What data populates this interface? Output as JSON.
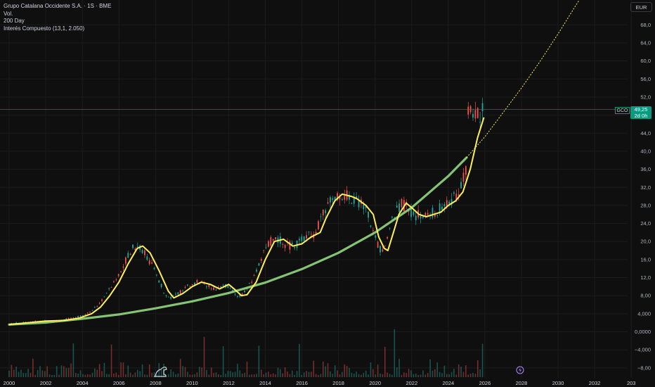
{
  "header": {
    "title": "Grupo Catalana Occidente S.A. · 1S · BME",
    "vol_label": "Vol.",
    "ma_label": "200 Day",
    "indicator_label": "Interés Compuesto (13,1, 2.050)"
  },
  "currency_button": "EUR",
  "price_tag": {
    "symbol": "GCO",
    "value": "49,25",
    "countdown": "2d 0h"
  },
  "colors": {
    "background": "#0f0f0f",
    "up": "#26a69a",
    "down": "#ef5350",
    "ma": "#fdee5b",
    "compound": "#8fd47e",
    "price_line": "#089981",
    "grid": "#1c1c1c"
  },
  "icons": {
    "logo": "tradingview-dino-logo",
    "lightning": "lightning-icon"
  },
  "chart_data": {
    "type": "line",
    "title": "Grupo Catalana Occidente S.A. · 1S · BME",
    "x_axis": {
      "range": [
        1999.5,
        2033.8
      ],
      "ticks": [
        "2000",
        "2002",
        "2004",
        "2006",
        "2008",
        "2010",
        "2012",
        "2014",
        "2016",
        "2018",
        "2020",
        "2022",
        "2024",
        "2026",
        "2028",
        "2030",
        "2032",
        "203"
      ]
    },
    "y_axis": {
      "range": [
        -10.2,
        73.5
      ],
      "ticks": [
        "68,0",
        "64,0",
        "60,0",
        "56,0",
        "52,0",
        "48,0",
        "44,0",
        "40,0",
        "36,0",
        "32,0",
        "28,0",
        "24,0",
        "20,0",
        "16,0",
        "12,0",
        "8,00",
        "4,000",
        "0,0000",
        "−4,000",
        "−8,00"
      ]
    },
    "last_price": 49.25,
    "series": [
      {
        "name": "200 Day",
        "x": [
          2000.0,
          2001.0,
          2002.0,
          2003.0,
          2003.8,
          2004.5,
          2005.0,
          2005.5,
          2006.0,
          2006.5,
          2007.0,
          2007.3,
          2007.7,
          2008.2,
          2008.7,
          2009.0,
          2009.5,
          2010.0,
          2010.5,
          2011.0,
          2011.5,
          2012.0,
          2012.3,
          2012.7,
          2013.0,
          2013.5,
          2014.0,
          2014.5,
          2015.0,
          2015.5,
          2016.0,
          2016.5,
          2017.0,
          2017.3,
          2017.8,
          2018.2,
          2018.7,
          2019.0,
          2019.5,
          2019.9,
          2020.2,
          2020.5,
          2020.7,
          2021.0,
          2021.3,
          2021.7,
          2022.0,
          2022.4,
          2022.8,
          2023.2,
          2023.6,
          2024.0,
          2024.4,
          2024.8,
          2025.2,
          2025.6,
          2025.95
        ],
        "values": [
          1.6,
          2.0,
          2.4,
          2.5,
          3.0,
          4.0,
          5.5,
          8.0,
          11.0,
          15.0,
          18.5,
          19.0,
          17.5,
          13.5,
          9.0,
          7.5,
          8.5,
          10.0,
          11.0,
          10.5,
          9.5,
          10.5,
          9.5,
          8.0,
          8.2,
          11.0,
          16.0,
          20.0,
          20.5,
          19.0,
          19.5,
          21.0,
          22.0,
          25.0,
          29.0,
          30.5,
          30.0,
          29.5,
          28.0,
          26.0,
          21.0,
          18.5,
          18.0,
          22.0,
          26.0,
          28.5,
          27.5,
          26.0,
          25.5,
          26.0,
          26.5,
          28.0,
          29.0,
          31.0,
          36.0,
          43.0,
          47.5
        ]
      },
      {
        "name": "Interés Compuesto (13,1, 2.050)",
        "x": [
          2000.0,
          2002.0,
          2004.0,
          2006.0,
          2008.0,
          2010.0,
          2012.0,
          2014.0,
          2016.0,
          2018.0,
          2020.0,
          2022.0,
          2024.0,
          2025.0
        ],
        "values": [
          1.6,
          2.05,
          2.9,
          3.85,
          5.2,
          6.75,
          8.6,
          10.9,
          13.9,
          17.5,
          22.0,
          27.5,
          34.5,
          38.6
        ]
      },
      {
        "name": "Interés Compuesto (13,1, 2.050) projection",
        "x": [
          2025.0,
          2026.0,
          2027.0,
          2028.0,
          2029.0,
          2030.0,
          2031.0,
          2031.4
        ],
        "values": [
          38.6,
          43.2,
          48.6,
          54.0,
          59.8,
          66.0,
          72.5,
          75.0
        ]
      }
    ]
  }
}
